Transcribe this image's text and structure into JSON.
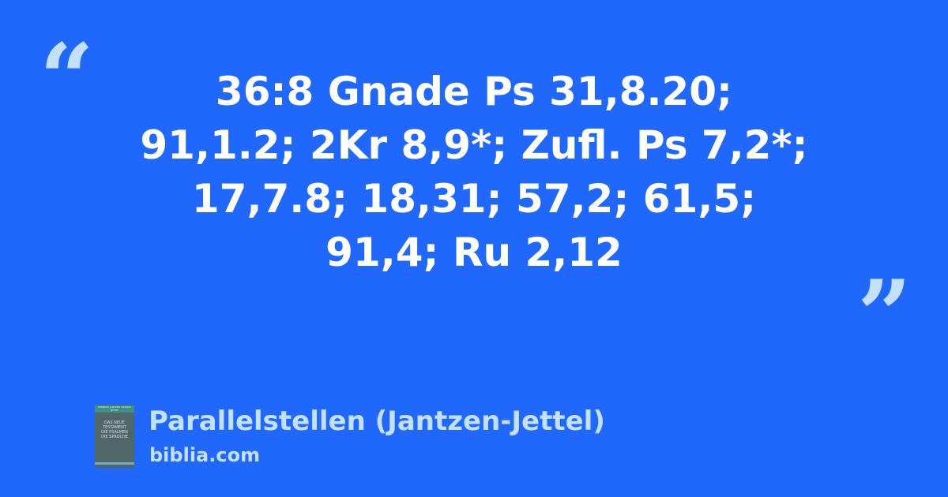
{
  "quote": {
    "open_mark": "“",
    "close_mark": "”",
    "lines": [
      "36:8 Gnade Ps 31,8.20;",
      "91,1.2; 2Kr 8,9*; Zufl. Ps 7,2*;",
      "17,7.8; 18,31; 57,2; 61,5;",
      "91,4; Ru 2,12"
    ]
  },
  "source": {
    "title": "Parallelstellen (Jantzen-Jettel)",
    "site": "biblia.com",
    "cover": {
      "authors": "HERBERT JANTZEN THOMAS JETTEL",
      "title_lines": [
        "DAS NEUE",
        "TESTAMENT",
        "DIE PSALMEN",
        "DIE SPRÜCHE"
      ]
    }
  },
  "colors": {
    "background": "#2068fc",
    "accent": "#c4e0ff",
    "text": "#ffffff"
  }
}
